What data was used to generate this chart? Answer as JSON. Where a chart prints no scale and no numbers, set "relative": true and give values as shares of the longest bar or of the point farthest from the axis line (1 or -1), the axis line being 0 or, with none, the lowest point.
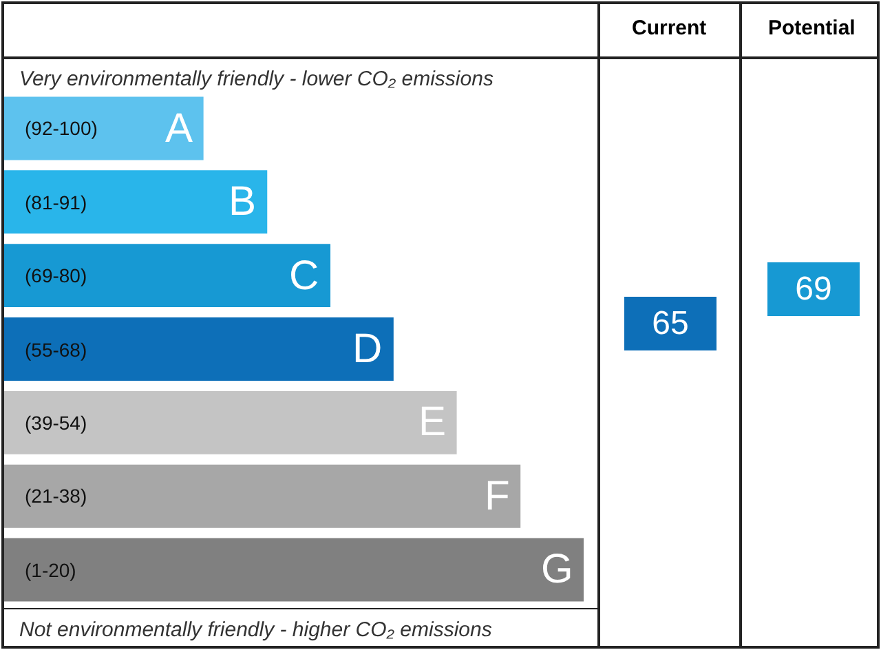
{
  "chart_data": {
    "type": "bar",
    "orientation": "horizontal",
    "relative": true,
    "categories": [
      "A",
      "B",
      "C",
      "D",
      "E",
      "F",
      "G"
    ],
    "values": [
      0.344,
      0.454,
      0.563,
      0.672,
      0.781,
      0.891,
      1
    ],
    "colors": [
      "#5dc2ee",
      "#29b5ea",
      "#1799d3",
      "#0d6fb8",
      "#c4c4c4",
      "#a7a7a7",
      "#808080"
    ],
    "annotations": [
      "Very environmentally friendly - lower CO₂ emissions",
      "Not environmentally friendly - higher CO₂ emissions",
      "Current",
      "Potential",
      "(92-100)",
      "(81-91)",
      "(69-80)",
      "(55-68)",
      "(39-54)",
      "(21-38)",
      "(1-20)",
      "65",
      "69"
    ]
  }
}
